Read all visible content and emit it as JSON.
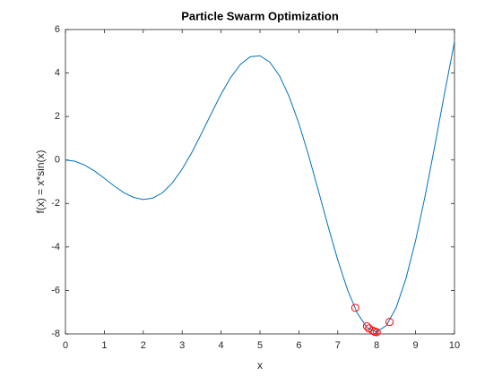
{
  "chart_data": {
    "type": "line",
    "title": "Particle Swarm Optimization",
    "xlabel": "x",
    "ylabel": "f(x) = x*sin(x)",
    "xlim": [
      0,
      10
    ],
    "ylim": [
      -8,
      6
    ],
    "xticks": [
      0,
      1,
      2,
      3,
      4,
      5,
      6,
      7,
      8,
      9,
      10
    ],
    "yticks": [
      -8,
      -6,
      -4,
      -2,
      0,
      2,
      4,
      6
    ],
    "series": [
      {
        "type": "line",
        "color": "#0072bd",
        "x": [
          0,
          0.25,
          0.5,
          0.75,
          1,
          1.25,
          1.5,
          1.75,
          2,
          2.25,
          2.5,
          2.75,
          3,
          3.25,
          3.5,
          3.75,
          4,
          4.25,
          4.5,
          4.75,
          5,
          5.25,
          5.5,
          5.75,
          6,
          6.25,
          6.5,
          6.75,
          7,
          7.25,
          7.5,
          7.75,
          8,
          8.25,
          8.5,
          8.75,
          9,
          9.25,
          9.5,
          9.75,
          10
        ],
        "values": [
          0,
          -0.06,
          -0.24,
          -0.51,
          -0.84,
          -1.19,
          -1.5,
          -1.72,
          -1.82,
          -1.75,
          -1.5,
          -1.05,
          -0.42,
          0.35,
          1.23,
          2.14,
          3.03,
          3.8,
          4.4,
          4.75,
          4.79,
          4.51,
          3.88,
          2.92,
          1.68,
          0.21,
          -1.4,
          -3.04,
          -4.6,
          -5.97,
          -7.04,
          -7.71,
          -7.91,
          -7.61,
          -6.79,
          -5.47,
          -3.71,
          -1.61,
          0.71,
          3.12,
          5.44
        ]
      },
      {
        "type": "scatter",
        "color": "#ff0000",
        "x": [
          7.45,
          8.33,
          7.75,
          7.8,
          7.9,
          7.95,
          8.0
        ],
        "values": [
          -6.8,
          -7.45,
          -7.65,
          -7.75,
          -7.85,
          -7.9,
          -7.92
        ]
      }
    ]
  }
}
